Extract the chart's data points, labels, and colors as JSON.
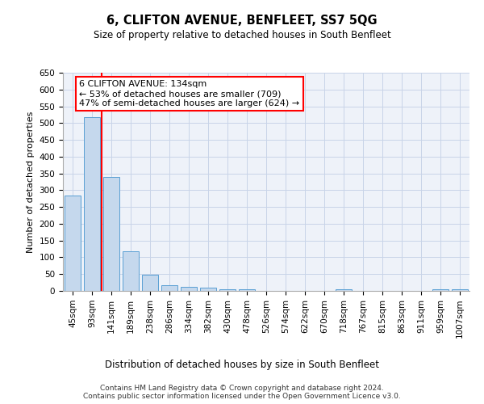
{
  "title": "6, CLIFTON AVENUE, BENFLEET, SS7 5QG",
  "subtitle": "Size of property relative to detached houses in South Benfleet",
  "xlabel": "Distribution of detached houses by size in South Benfleet",
  "ylabel": "Number of detached properties",
  "categories": [
    "45sqm",
    "93sqm",
    "141sqm",
    "189sqm",
    "238sqm",
    "286sqm",
    "334sqm",
    "382sqm",
    "430sqm",
    "478sqm",
    "526sqm",
    "574sqm",
    "622sqm",
    "670sqm",
    "718sqm",
    "767sqm",
    "815sqm",
    "863sqm",
    "911sqm",
    "959sqm",
    "1007sqm"
  ],
  "values": [
    285,
    518,
    340,
    118,
    47,
    17,
    11,
    9,
    5,
    4,
    0,
    0,
    0,
    0,
    5,
    0,
    0,
    0,
    0,
    5,
    5
  ],
  "bar_color": "#c5d8ed",
  "bar_edge_color": "#5a9fd4",
  "annotation_text": "6 CLIFTON AVENUE: 134sqm\n← 53% of detached houses are smaller (709)\n47% of semi-detached houses are larger (624) →",
  "annotation_box_color": "white",
  "annotation_box_edge_color": "red",
  "ylim": [
    0,
    650
  ],
  "yticks": [
    0,
    50,
    100,
    150,
    200,
    250,
    300,
    350,
    400,
    450,
    500,
    550,
    600,
    650
  ],
  "footer_line1": "Contains HM Land Registry data © Crown copyright and database right 2024.",
  "footer_line2": "Contains public sector information licensed under the Open Government Licence v3.0.",
  "bg_color": "#eef2f9",
  "fig_bg_color": "#ffffff",
  "grid_color": "#c8d4e8"
}
